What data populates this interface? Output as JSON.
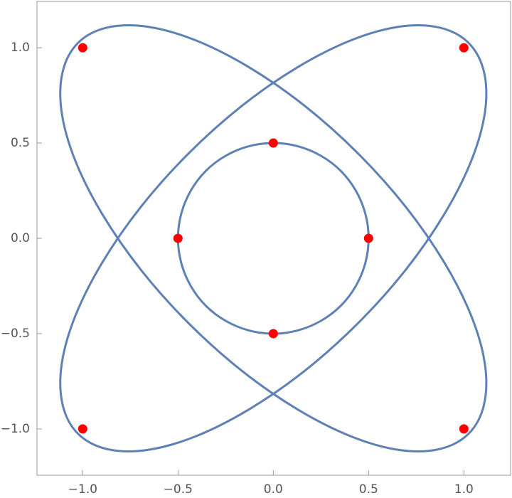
{
  "chart_data": {
    "type": "line",
    "xlim": [
      -1.24,
      1.245
    ],
    "ylim": [
      -1.243,
      1.243
    ],
    "xticks": [
      {
        "value": -1,
        "label": "−1.0"
      },
      {
        "value": -0.5,
        "label": "−0.5"
      },
      {
        "value": 0,
        "label": "0.0"
      },
      {
        "value": 0.5,
        "label": "0.5"
      },
      {
        "value": 1,
        "label": "1.0"
      }
    ],
    "yticks": [
      {
        "value": -1,
        "label": "−1.0"
      },
      {
        "value": -0.5,
        "label": "−0.5"
      },
      {
        "value": 0,
        "label": "0.0"
      },
      {
        "value": 0.5,
        "label": "0.5"
      },
      {
        "value": 1,
        "label": "1.0"
      }
    ],
    "series": [
      {
        "type": "line",
        "color": "#5e81b5",
        "x": [
          1.025,
          0.875,
          0.665,
          0.41,
          0.128,
          -0.165,
          -0.445,
          -0.695,
          -0.898,
          -1.04,
          -1.111,
          -1.105,
          -1.025,
          -0.875,
          -0.665,
          -0.41,
          -0.128,
          0.165,
          0.445,
          0.695,
          0.898,
          1.04,
          1.111,
          1.105
        ],
        "y": [
          1.025,
          1.105,
          1.111,
          1.04,
          0.898,
          0.695,
          0.445,
          0.165,
          -0.128,
          -0.41,
          -0.665,
          -0.875,
          -1.025,
          -1.105,
          -1.111,
          -1.04,
          -0.898,
          -0.695,
          -0.445,
          -0.165,
          0.128,
          0.41,
          0.665,
          0.875
        ]
      },
      {
        "type": "line",
        "color": "#5e81b5",
        "x": [
          -1.025,
          -0.875,
          -0.665,
          -0.41,
          -0.128,
          0.165,
          0.445,
          0.695,
          0.898,
          1.04,
          1.111,
          1.105,
          1.025,
          0.875,
          0.665,
          0.41,
          0.128,
          -0.165,
          -0.445,
          -0.695,
          -0.898,
          -1.04,
          -1.111,
          -1.105
        ],
        "y": [
          1.025,
          1.105,
          1.111,
          1.04,
          0.898,
          0.695,
          0.445,
          0.165,
          -0.128,
          -0.41,
          -0.665,
          -0.875,
          -1.025,
          -1.105,
          -1.111,
          -1.04,
          -0.898,
          -0.695,
          -0.445,
          -0.165,
          0.128,
          0.41,
          0.665,
          0.875
        ]
      },
      {
        "type": "line",
        "color": "#5e81b5",
        "x": [
          0.5,
          0.483,
          0.433,
          0.354,
          0.25,
          0.129,
          0,
          -0.129,
          -0.25,
          -0.354,
          -0.433,
          -0.483,
          -0.5,
          -0.483,
          -0.433,
          -0.354,
          -0.25,
          -0.129,
          0,
          0.129,
          0.25,
          0.354,
          0.433,
          0.483
        ],
        "y": [
          0,
          0.129,
          0.25,
          0.354,
          0.433,
          0.483,
          0.5,
          0.483,
          0.433,
          0.354,
          0.25,
          0.129,
          0,
          -0.129,
          -0.25,
          -0.354,
          -0.433,
          -0.483,
          -0.5,
          -0.483,
          -0.433,
          -0.354,
          -0.25,
          -0.129
        ]
      },
      {
        "type": "scatter",
        "color": "#ff0000",
        "x": [
          1,
          -1,
          0,
          -0.5,
          0.5,
          0,
          -1,
          1
        ],
        "y": [
          1,
          1,
          0.5,
          0,
          0,
          -0.5,
          -1,
          -1
        ]
      }
    ]
  }
}
